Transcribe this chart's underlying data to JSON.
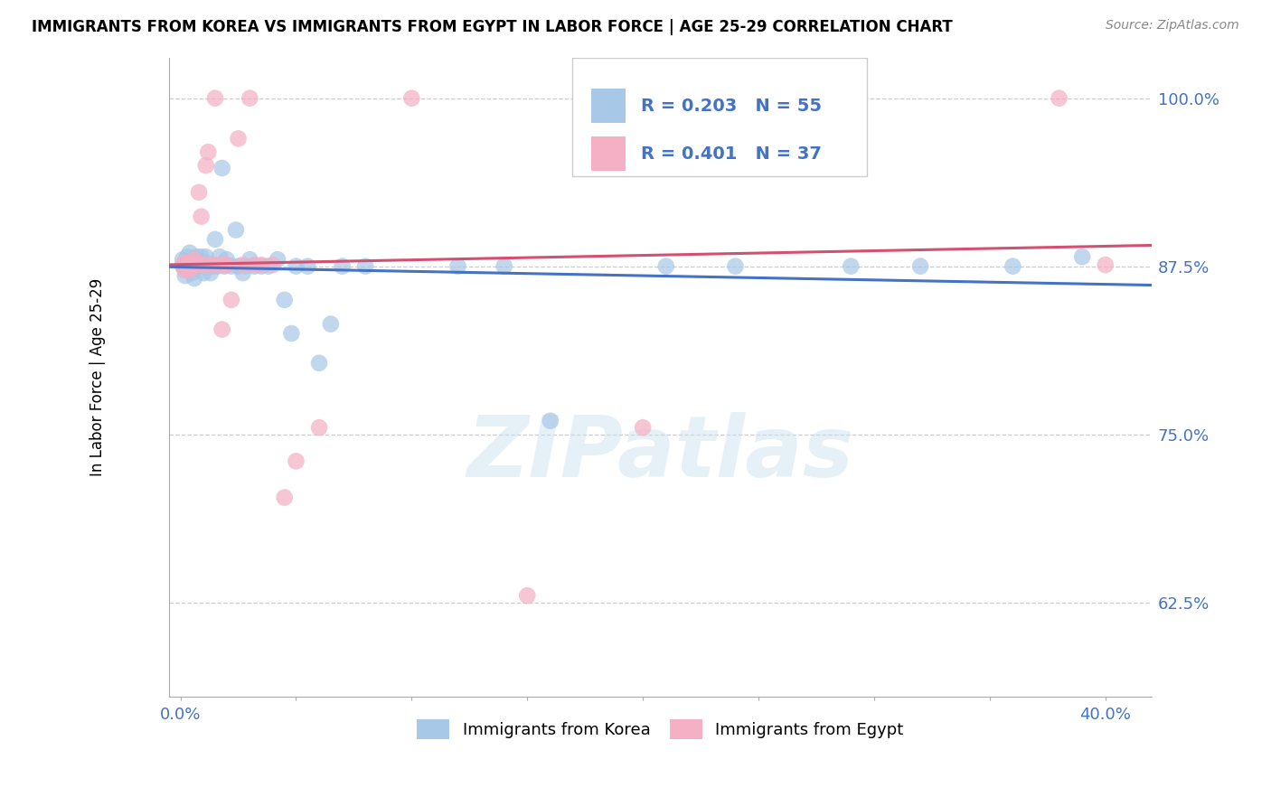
{
  "title": "IMMIGRANTS FROM KOREA VS IMMIGRANTS FROM EGYPT IN LABOR FORCE | AGE 25-29 CORRELATION CHART",
  "source": "Source: ZipAtlas.com",
  "ylabel": "In Labor Force | Age 25-29",
  "yticks": [
    0.625,
    0.75,
    0.875,
    1.0
  ],
  "ytick_labels": [
    "62.5%",
    "75.0%",
    "87.5%",
    "100.0%"
  ],
  "xtick_positions": [
    0.0,
    0.05,
    0.1,
    0.15,
    0.2,
    0.25,
    0.3,
    0.35,
    0.4
  ],
  "xtick_labels": [
    "0.0%",
    "",
    "",
    "",
    "",
    "",
    "",
    "",
    "40.0%"
  ],
  "xlim": [
    -0.005,
    0.42
  ],
  "ylim": [
    0.555,
    1.03
  ],
  "korea_color": "#a8c8e8",
  "korea_line_color": "#4472c4",
  "egypt_color": "#f5b0c5",
  "egypt_line_color": "#d45070",
  "korea_R": 0.203,
  "korea_N": 55,
  "egypt_R": 0.401,
  "egypt_N": 37,
  "legend_label_korea": "Immigrants from Korea",
  "legend_label_egypt": "Immigrants from Egypt",
  "watermark_text": "ZIPatlas",
  "korea_x": [
    0.001,
    0.001,
    0.002,
    0.002,
    0.003,
    0.003,
    0.004,
    0.004,
    0.005,
    0.005,
    0.006,
    0.006,
    0.007,
    0.007,
    0.008,
    0.009,
    0.01,
    0.01,
    0.011,
    0.012,
    0.013,
    0.014,
    0.015,
    0.016,
    0.017,
    0.018,
    0.019,
    0.02,
    0.022,
    0.024,
    0.025,
    0.027,
    0.028,
    0.03,
    0.032,
    0.035,
    0.038,
    0.042,
    0.045,
    0.048,
    0.05,
    0.055,
    0.06,
    0.065,
    0.07,
    0.08,
    0.12,
    0.14,
    0.16,
    0.21,
    0.24,
    0.29,
    0.32,
    0.36,
    0.39
  ],
  "korea_y": [
    0.88,
    0.875,
    0.875,
    0.868,
    0.882,
    0.873,
    0.885,
    0.878,
    0.88,
    0.87,
    0.875,
    0.866,
    0.882,
    0.875,
    0.878,
    0.882,
    0.875,
    0.87,
    0.882,
    0.877,
    0.87,
    0.875,
    0.895,
    0.875,
    0.882,
    0.948,
    0.875,
    0.88,
    0.875,
    0.902,
    0.875,
    0.87,
    0.875,
    0.88,
    0.875,
    0.875,
    0.875,
    0.88,
    0.85,
    0.825,
    0.875,
    0.875,
    0.803,
    0.832,
    0.875,
    0.875,
    0.875,
    0.875,
    0.76,
    0.875,
    0.875,
    0.875,
    0.875,
    0.875,
    0.882
  ],
  "egypt_x": [
    0.001,
    0.002,
    0.002,
    0.003,
    0.004,
    0.004,
    0.005,
    0.006,
    0.007,
    0.008,
    0.008,
    0.009,
    0.01,
    0.011,
    0.012,
    0.013,
    0.015,
    0.016,
    0.018,
    0.019,
    0.02,
    0.022,
    0.025,
    0.027,
    0.03,
    0.032,
    0.035,
    0.04,
    0.045,
    0.05,
    0.06,
    0.1,
    0.15,
    0.2,
    0.25,
    0.38,
    0.4
  ],
  "egypt_y": [
    0.876,
    0.878,
    0.872,
    0.876,
    0.878,
    0.872,
    0.876,
    0.88,
    0.876,
    0.93,
    0.876,
    0.912,
    0.876,
    0.95,
    0.96,
    0.876,
    1.0,
    0.876,
    0.828,
    0.876,
    0.876,
    0.85,
    0.97,
    0.876,
    1.0,
    0.876,
    0.876,
    0.876,
    0.703,
    0.73,
    0.755,
    1.0,
    0.63,
    0.755,
    1.0,
    1.0,
    0.876
  ]
}
